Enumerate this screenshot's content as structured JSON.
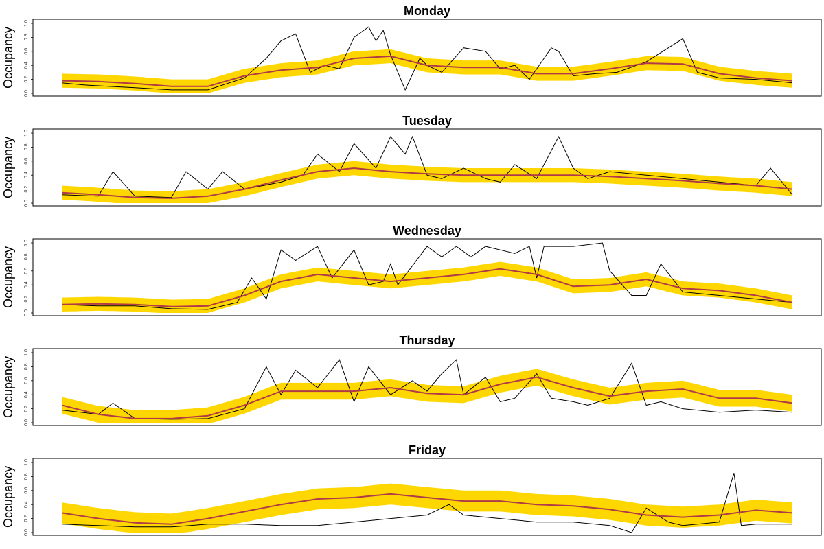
{
  "chart_data": [
    {
      "type": "line",
      "title": "Monday",
      "ylabel": "Occupancy",
      "xlabel": "",
      "ylim": [
        0,
        1
      ],
      "yticks": [
        "0.0",
        "0.2",
        "0.4",
        "0.6",
        "0.8",
        "1.0"
      ],
      "x_range": [
        0,
        1
      ],
      "series": [
        {
          "role": "band",
          "color": "#FFD700",
          "half_width": 0.1
        },
        {
          "role": "mean",
          "color": "#B03A48",
          "x": [
            0,
            0.05,
            0.1,
            0.15,
            0.2,
            0.25,
            0.3,
            0.35,
            0.4,
            0.45,
            0.5,
            0.55,
            0.6,
            0.65,
            0.7,
            0.75,
            0.8,
            0.85,
            0.9,
            0.95,
            1.0
          ],
          "y": [
            0.18,
            0.17,
            0.14,
            0.1,
            0.1,
            0.25,
            0.33,
            0.37,
            0.5,
            0.53,
            0.4,
            0.37,
            0.37,
            0.28,
            0.28,
            0.35,
            0.43,
            0.42,
            0.28,
            0.22,
            0.18
          ]
        },
        {
          "role": "observed",
          "color": "#000000",
          "x": [
            0,
            0.03,
            0.1,
            0.15,
            0.2,
            0.25,
            0.28,
            0.3,
            0.32,
            0.34,
            0.36,
            0.38,
            0.4,
            0.42,
            0.43,
            0.44,
            0.45,
            0.47,
            0.49,
            0.5,
            0.52,
            0.55,
            0.58,
            0.6,
            0.62,
            0.64,
            0.67,
            0.68,
            0.7,
            0.73,
            0.76,
            0.8,
            0.85,
            0.87,
            0.9,
            0.95,
            1.0
          ],
          "y": [
            0.15,
            0.12,
            0.08,
            0.05,
            0.05,
            0.22,
            0.5,
            0.75,
            0.85,
            0.3,
            0.4,
            0.35,
            0.8,
            0.95,
            0.75,
            0.9,
            0.55,
            0.05,
            0.5,
            0.4,
            0.3,
            0.65,
            0.6,
            0.35,
            0.4,
            0.2,
            0.65,
            0.6,
            0.25,
            0.28,
            0.3,
            0.45,
            0.78,
            0.3,
            0.22,
            0.2,
            0.15
          ]
        }
      ]
    },
    {
      "type": "line",
      "title": "Tuesday",
      "ylabel": "Occupancy",
      "xlabel": "",
      "ylim": [
        0,
        1
      ],
      "yticks": [
        "0.0",
        "0.2",
        "0.4",
        "0.6",
        "0.8",
        "1.0"
      ],
      "x_range": [
        0,
        1
      ],
      "series": [
        {
          "role": "band",
          "color": "#FFD700",
          "half_width": 0.1
        },
        {
          "role": "mean",
          "color": "#B03A48",
          "x": [
            0,
            0.05,
            0.1,
            0.15,
            0.2,
            0.25,
            0.3,
            0.35,
            0.4,
            0.45,
            0.5,
            0.55,
            0.6,
            0.65,
            0.7,
            0.75,
            0.8,
            0.85,
            0.9,
            0.95,
            1.0
          ],
          "y": [
            0.15,
            0.12,
            0.08,
            0.07,
            0.1,
            0.2,
            0.33,
            0.45,
            0.5,
            0.45,
            0.42,
            0.4,
            0.4,
            0.4,
            0.4,
            0.38,
            0.35,
            0.32,
            0.28,
            0.25,
            0.2
          ]
        },
        {
          "role": "observed",
          "color": "#000000",
          "x": [
            0,
            0.05,
            0.07,
            0.1,
            0.15,
            0.17,
            0.2,
            0.22,
            0.25,
            0.3,
            0.33,
            0.35,
            0.38,
            0.4,
            0.43,
            0.45,
            0.47,
            0.48,
            0.5,
            0.52,
            0.55,
            0.58,
            0.6,
            0.62,
            0.65,
            0.68,
            0.7,
            0.72,
            0.75,
            0.8,
            0.85,
            0.9,
            0.95,
            0.97,
            1.0
          ],
          "y": [
            0.12,
            0.1,
            0.45,
            0.1,
            0.08,
            0.45,
            0.2,
            0.45,
            0.2,
            0.3,
            0.4,
            0.7,
            0.45,
            0.85,
            0.5,
            0.95,
            0.7,
            0.95,
            0.4,
            0.35,
            0.5,
            0.35,
            0.3,
            0.55,
            0.35,
            0.95,
            0.5,
            0.35,
            0.45,
            0.4,
            0.35,
            0.3,
            0.25,
            0.5,
            0.12
          ]
        }
      ]
    },
    {
      "type": "line",
      "title": "Wednesday",
      "ylabel": "Occupancy",
      "xlabel": "",
      "ylim": [
        0,
        1
      ],
      "yticks": [
        "0.0",
        "0.2",
        "0.4",
        "0.6",
        "0.8",
        "1.0"
      ],
      "x_range": [
        0,
        1
      ],
      "series": [
        {
          "role": "band",
          "color": "#FFD700",
          "half_width": 0.1
        },
        {
          "role": "mean",
          "color": "#B03A48",
          "x": [
            0,
            0.05,
            0.1,
            0.15,
            0.2,
            0.25,
            0.3,
            0.35,
            0.4,
            0.45,
            0.5,
            0.55,
            0.6,
            0.65,
            0.7,
            0.75,
            0.8,
            0.85,
            0.9,
            0.95,
            1.0
          ],
          "y": [
            0.12,
            0.13,
            0.12,
            0.09,
            0.1,
            0.25,
            0.45,
            0.55,
            0.5,
            0.45,
            0.5,
            0.55,
            0.63,
            0.55,
            0.38,
            0.4,
            0.48,
            0.35,
            0.32,
            0.25,
            0.15
          ]
        },
        {
          "role": "observed",
          "color": "#000000",
          "x": [
            0,
            0.05,
            0.1,
            0.15,
            0.2,
            0.24,
            0.26,
            0.28,
            0.3,
            0.32,
            0.35,
            0.37,
            0.4,
            0.42,
            0.44,
            0.45,
            0.46,
            0.5,
            0.52,
            0.54,
            0.56,
            0.58,
            0.6,
            0.62,
            0.64,
            0.65,
            0.66,
            0.7,
            0.74,
            0.75,
            0.78,
            0.8,
            0.82,
            0.85,
            0.9,
            0.95,
            1.0
          ],
          "y": [
            0.12,
            0.1,
            0.1,
            0.06,
            0.05,
            0.15,
            0.5,
            0.2,
            0.9,
            0.75,
            0.95,
            0.5,
            0.9,
            0.4,
            0.45,
            0.7,
            0.4,
            0.95,
            0.8,
            0.95,
            0.8,
            0.95,
            0.9,
            0.85,
            0.95,
            0.5,
            0.95,
            0.95,
            1.0,
            0.6,
            0.25,
            0.25,
            0.7,
            0.3,
            0.25,
            0.2,
            0.15
          ]
        }
      ]
    },
    {
      "type": "line",
      "title": "Thursday",
      "ylabel": "Occupancy",
      "xlabel": "",
      "ylim": [
        0,
        1
      ],
      "yticks": [
        "0.0",
        "0.2",
        "0.4",
        "0.6",
        "0.8",
        "1.0"
      ],
      "x_range": [
        0,
        1
      ],
      "series": [
        {
          "role": "band",
          "color": "#FFD700",
          "half_width": 0.12
        },
        {
          "role": "mean",
          "color": "#B03A48",
          "x": [
            0,
            0.05,
            0.1,
            0.15,
            0.2,
            0.25,
            0.3,
            0.35,
            0.4,
            0.45,
            0.5,
            0.55,
            0.6,
            0.65,
            0.7,
            0.75,
            0.8,
            0.85,
            0.9,
            0.95,
            1.0
          ],
          "y": [
            0.25,
            0.12,
            0.06,
            0.06,
            0.1,
            0.25,
            0.45,
            0.45,
            0.45,
            0.5,
            0.42,
            0.4,
            0.55,
            0.65,
            0.5,
            0.38,
            0.45,
            0.48,
            0.35,
            0.35,
            0.28
          ]
        },
        {
          "role": "observed",
          "color": "#000000",
          "x": [
            0,
            0.05,
            0.07,
            0.1,
            0.15,
            0.2,
            0.25,
            0.28,
            0.3,
            0.32,
            0.35,
            0.38,
            0.4,
            0.42,
            0.45,
            0.48,
            0.5,
            0.52,
            0.54,
            0.55,
            0.58,
            0.6,
            0.62,
            0.65,
            0.67,
            0.7,
            0.72,
            0.75,
            0.78,
            0.8,
            0.82,
            0.85,
            0.9,
            0.95,
            1.0
          ],
          "y": [
            0.18,
            0.12,
            0.28,
            0.06,
            0.05,
            0.06,
            0.2,
            0.8,
            0.4,
            0.75,
            0.5,
            0.9,
            0.3,
            0.8,
            0.4,
            0.6,
            0.45,
            0.7,
            0.9,
            0.4,
            0.65,
            0.3,
            0.35,
            0.7,
            0.35,
            0.3,
            0.25,
            0.35,
            0.85,
            0.25,
            0.3,
            0.2,
            0.15,
            0.18,
            0.15
          ]
        }
      ]
    },
    {
      "type": "line",
      "title": "Friday",
      "ylabel": "Occupancy",
      "xlabel": "",
      "ylim": [
        0,
        1
      ],
      "yticks": [
        "0.0",
        "0.2",
        "0.4",
        "0.6",
        "0.8",
        "1.0"
      ],
      "x_range": [
        0,
        1
      ],
      "series": [
        {
          "role": "band",
          "color": "#FFD700",
          "half_width": 0.15
        },
        {
          "role": "mean",
          "color": "#B03A48",
          "x": [
            0,
            0.05,
            0.1,
            0.15,
            0.2,
            0.25,
            0.3,
            0.35,
            0.4,
            0.45,
            0.5,
            0.55,
            0.6,
            0.65,
            0.7,
            0.75,
            0.8,
            0.85,
            0.9,
            0.95,
            1.0
          ],
          "y": [
            0.28,
            0.2,
            0.14,
            0.12,
            0.2,
            0.3,
            0.4,
            0.48,
            0.5,
            0.55,
            0.5,
            0.45,
            0.45,
            0.4,
            0.38,
            0.33,
            0.25,
            0.22,
            0.25,
            0.32,
            0.28
          ]
        },
        {
          "role": "observed",
          "color": "#000000",
          "x": [
            0,
            0.05,
            0.1,
            0.15,
            0.2,
            0.25,
            0.3,
            0.35,
            0.4,
            0.45,
            0.5,
            0.53,
            0.55,
            0.6,
            0.65,
            0.7,
            0.75,
            0.78,
            0.8,
            0.83,
            0.85,
            0.9,
            0.92,
            0.93,
            0.95,
            1.0
          ],
          "y": [
            0.12,
            0.1,
            0.08,
            0.08,
            0.12,
            0.12,
            0.1,
            0.1,
            0.15,
            0.2,
            0.25,
            0.4,
            0.25,
            0.2,
            0.15,
            0.15,
            0.1,
            0.0,
            0.35,
            0.15,
            0.1,
            0.15,
            0.85,
            0.1,
            0.12,
            0.12
          ]
        }
      ]
    }
  ]
}
